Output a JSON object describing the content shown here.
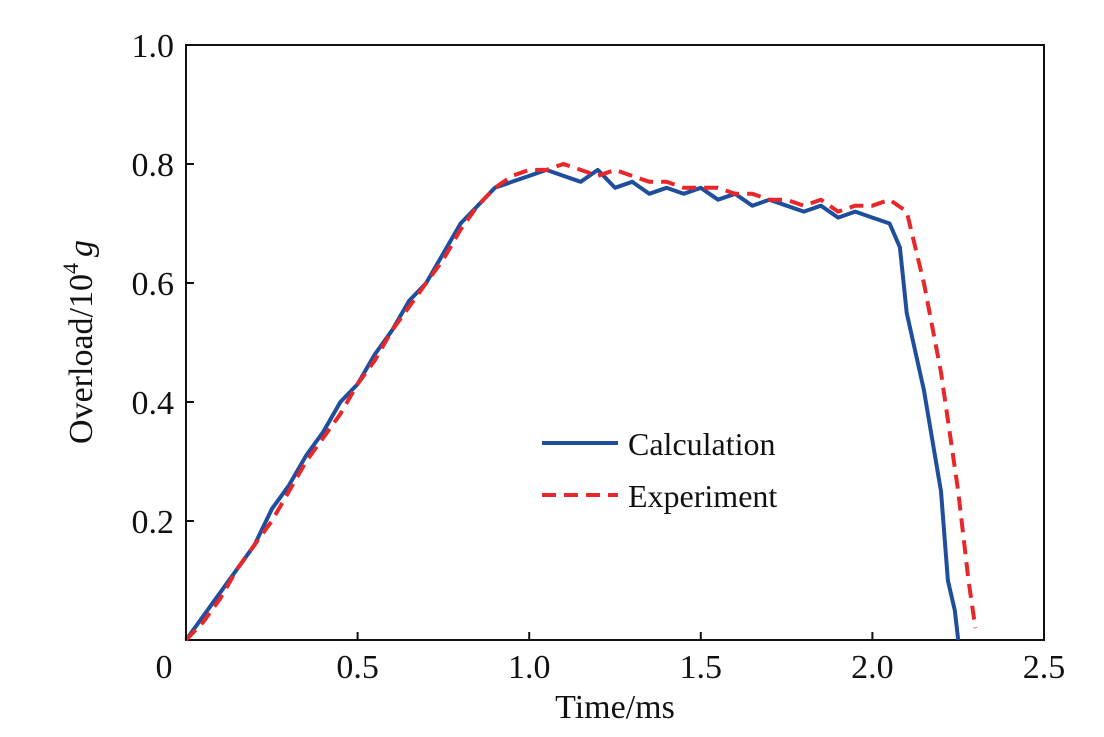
{
  "chart_data": {
    "type": "line",
    "xlabel": "Time/ms",
    "ylabel": {
      "prefix": "Overload/10",
      "exponent": "4",
      "unit": "g"
    },
    "xlim": [
      0,
      2.5
    ],
    "ylim": [
      0,
      1.0
    ],
    "xticks": [
      {
        "value": 0,
        "label": "0"
      },
      {
        "value": 0.5,
        "label": "0.5"
      },
      {
        "value": 1.0,
        "label": "1.0"
      },
      {
        "value": 1.5,
        "label": "1.5"
      },
      {
        "value": 2.0,
        "label": "2.0"
      },
      {
        "value": 2.5,
        "label": "2.5"
      }
    ],
    "yticks": [
      {
        "value": 0.2,
        "label": "0.2"
      },
      {
        "value": 0.4,
        "label": "0.4"
      },
      {
        "value": 0.6,
        "label": "0.6"
      },
      {
        "value": 0.8,
        "label": "0.8"
      },
      {
        "value": 1.0,
        "label": "1.0"
      }
    ],
    "grid": false,
    "legend_position": "center-right",
    "series": [
      {
        "name": "Calculation",
        "color": "#1f4e9c",
        "style": "solid",
        "x": [
          0.0,
          0.05,
          0.1,
          0.15,
          0.2,
          0.25,
          0.3,
          0.35,
          0.4,
          0.45,
          0.5,
          0.55,
          0.6,
          0.65,
          0.7,
          0.75,
          0.8,
          0.85,
          0.9,
          0.95,
          1.0,
          1.05,
          1.1,
          1.15,
          1.2,
          1.25,
          1.3,
          1.35,
          1.4,
          1.45,
          1.5,
          1.55,
          1.6,
          1.65,
          1.7,
          1.75,
          1.8,
          1.85,
          1.9,
          1.95,
          2.0,
          2.05,
          2.08,
          2.1,
          2.15,
          2.2,
          2.22,
          2.24,
          2.25
        ],
        "y": [
          0.0,
          0.04,
          0.08,
          0.12,
          0.16,
          0.22,
          0.26,
          0.31,
          0.35,
          0.4,
          0.43,
          0.48,
          0.52,
          0.57,
          0.6,
          0.65,
          0.7,
          0.73,
          0.76,
          0.77,
          0.78,
          0.79,
          0.78,
          0.77,
          0.79,
          0.76,
          0.77,
          0.75,
          0.76,
          0.75,
          0.76,
          0.74,
          0.75,
          0.73,
          0.74,
          0.73,
          0.72,
          0.73,
          0.71,
          0.72,
          0.71,
          0.7,
          0.66,
          0.55,
          0.42,
          0.25,
          0.1,
          0.05,
          0.0
        ]
      },
      {
        "name": "Experiment",
        "color": "#e8272a",
        "style": "dashed",
        "x": [
          0.0,
          0.05,
          0.1,
          0.15,
          0.2,
          0.25,
          0.3,
          0.35,
          0.4,
          0.45,
          0.5,
          0.55,
          0.6,
          0.65,
          0.7,
          0.75,
          0.8,
          0.85,
          0.9,
          0.95,
          1.0,
          1.05,
          1.1,
          1.15,
          1.2,
          1.25,
          1.3,
          1.35,
          1.4,
          1.45,
          1.5,
          1.55,
          1.6,
          1.65,
          1.7,
          1.75,
          1.8,
          1.85,
          1.9,
          1.95,
          2.0,
          2.05,
          2.1,
          2.15,
          2.2,
          2.25,
          2.28,
          2.3
        ],
        "y": [
          0.0,
          0.03,
          0.07,
          0.12,
          0.16,
          0.2,
          0.25,
          0.3,
          0.34,
          0.38,
          0.43,
          0.47,
          0.52,
          0.56,
          0.6,
          0.64,
          0.69,
          0.73,
          0.76,
          0.78,
          0.79,
          0.79,
          0.8,
          0.79,
          0.78,
          0.79,
          0.78,
          0.77,
          0.77,
          0.76,
          0.76,
          0.76,
          0.75,
          0.75,
          0.74,
          0.74,
          0.73,
          0.74,
          0.72,
          0.73,
          0.73,
          0.74,
          0.72,
          0.6,
          0.45,
          0.25,
          0.1,
          0.02
        ]
      }
    ]
  }
}
